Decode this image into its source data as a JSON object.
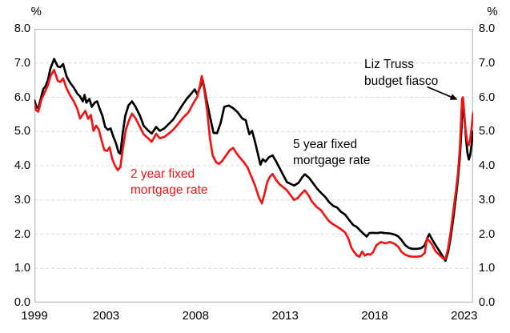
{
  "page": {
    "background": "#ffffff"
  },
  "chart_data": {
    "type": "line",
    "title": "",
    "x_axis": {
      "min": 1999.0,
      "max": 2023.5,
      "tick_years": [
        1999,
        2003,
        2008,
        2013,
        2018,
        2023
      ]
    },
    "y_axis": {
      "min": 0,
      "max": 8,
      "tick_step": 1,
      "unit": "%",
      "label_format": "one-decimal",
      "gridlines": "dashed-horizontal",
      "shown_on": "both-sides"
    },
    "grid_color": "#d9d9d9",
    "frame_color": "#bfbfbf",
    "series": [
      {
        "id": "five_year",
        "name": "5 year fixed mortgage rate",
        "label_lines": [
          "5 year fixed",
          "mortgage rate"
        ],
        "color": "#000000",
        "points": [
          [
            1999.0,
            5.91
          ],
          [
            1999.1,
            5.73
          ],
          [
            1999.22,
            5.68
          ],
          [
            1999.4,
            6.05
          ],
          [
            1999.5,
            6.25
          ],
          [
            1999.6,
            6.3
          ],
          [
            1999.75,
            6.5
          ],
          [
            1999.9,
            6.85
          ],
          [
            2000.1,
            7.12
          ],
          [
            2000.3,
            6.9
          ],
          [
            2000.45,
            6.88
          ],
          [
            2000.6,
            6.97
          ],
          [
            2000.8,
            6.6
          ],
          [
            2001.0,
            6.42
          ],
          [
            2001.2,
            6.28
          ],
          [
            2001.4,
            6.1
          ],
          [
            2001.54,
            6.03
          ],
          [
            2001.7,
            5.88
          ],
          [
            2001.8,
            6.07
          ],
          [
            2001.9,
            5.84
          ],
          [
            2002.07,
            5.95
          ],
          [
            2002.2,
            5.72
          ],
          [
            2002.36,
            5.84
          ],
          [
            2002.5,
            5.88
          ],
          [
            2002.66,
            5.64
          ],
          [
            2002.8,
            5.45
          ],
          [
            2002.95,
            5.13
          ],
          [
            2003.1,
            5.05
          ],
          [
            2003.25,
            5.09
          ],
          [
            2003.4,
            4.86
          ],
          [
            2003.55,
            4.66
          ],
          [
            2003.7,
            4.39
          ],
          [
            2003.8,
            4.35
          ],
          [
            2003.92,
            4.9
          ],
          [
            2004.07,
            5.45
          ],
          [
            2004.25,
            5.76
          ],
          [
            2004.45,
            5.88
          ],
          [
            2004.65,
            5.72
          ],
          [
            2004.9,
            5.45
          ],
          [
            2005.1,
            5.17
          ],
          [
            2005.35,
            5.03
          ],
          [
            2005.55,
            4.94
          ],
          [
            2005.8,
            5.13
          ],
          [
            2006.0,
            5.02
          ],
          [
            2006.25,
            5.09
          ],
          [
            2006.5,
            5.22
          ],
          [
            2006.75,
            5.35
          ],
          [
            2007.0,
            5.55
          ],
          [
            2007.25,
            5.76
          ],
          [
            2007.5,
            5.95
          ],
          [
            2007.75,
            6.1
          ],
          [
            2007.95,
            6.23
          ],
          [
            2008.1,
            6.08
          ],
          [
            2008.25,
            6.3
          ],
          [
            2008.4,
            6.5
          ],
          [
            2008.6,
            5.95
          ],
          [
            2008.8,
            5.44
          ],
          [
            2009.0,
            4.96
          ],
          [
            2009.2,
            4.95
          ],
          [
            2009.4,
            5.25
          ],
          [
            2009.6,
            5.72
          ],
          [
            2009.85,
            5.76
          ],
          [
            2010.1,
            5.68
          ],
          [
            2010.35,
            5.56
          ],
          [
            2010.6,
            5.38
          ],
          [
            2010.8,
            5.33
          ],
          [
            2011.0,
            4.92
          ],
          [
            2011.15,
            5.02
          ],
          [
            2011.3,
            4.74
          ],
          [
            2011.5,
            4.3
          ],
          [
            2011.62,
            4.03
          ],
          [
            2011.75,
            4.19
          ],
          [
            2011.9,
            4.12
          ],
          [
            2012.1,
            4.25
          ],
          [
            2012.3,
            4.3
          ],
          [
            2012.5,
            4.12
          ],
          [
            2012.7,
            3.92
          ],
          [
            2012.9,
            3.72
          ],
          [
            2013.1,
            3.52
          ],
          [
            2013.3,
            3.47
          ],
          [
            2013.5,
            3.42
          ],
          [
            2013.75,
            3.5
          ],
          [
            2013.95,
            3.66
          ],
          [
            2014.1,
            3.75
          ],
          [
            2014.35,
            3.64
          ],
          [
            2014.6,
            3.46
          ],
          [
            2014.8,
            3.32
          ],
          [
            2015.0,
            3.21
          ],
          [
            2015.25,
            3.08
          ],
          [
            2015.45,
            2.94
          ],
          [
            2015.7,
            2.82
          ],
          [
            2015.9,
            2.78
          ],
          [
            2016.1,
            2.66
          ],
          [
            2016.35,
            2.57
          ],
          [
            2016.55,
            2.43
          ],
          [
            2016.8,
            2.27
          ],
          [
            2017.0,
            2.21
          ],
          [
            2017.2,
            2.1
          ],
          [
            2017.4,
            2.0
          ],
          [
            2017.55,
            1.93
          ],
          [
            2017.7,
            2.03
          ],
          [
            2017.9,
            2.04
          ],
          [
            2018.1,
            2.03
          ],
          [
            2018.35,
            2.05
          ],
          [
            2018.6,
            2.03
          ],
          [
            2018.85,
            2.02
          ],
          [
            2019.1,
            1.99
          ],
          [
            2019.3,
            1.94
          ],
          [
            2019.5,
            1.83
          ],
          [
            2019.7,
            1.68
          ],
          [
            2019.9,
            1.6
          ],
          [
            2020.1,
            1.57
          ],
          [
            2020.35,
            1.57
          ],
          [
            2020.6,
            1.59
          ],
          [
            2020.8,
            1.68
          ],
          [
            2020.95,
            1.9
          ],
          [
            2021.05,
            2.0
          ],
          [
            2021.2,
            1.85
          ],
          [
            2021.4,
            1.68
          ],
          [
            2021.6,
            1.52
          ],
          [
            2021.8,
            1.35
          ],
          [
            2021.95,
            1.22
          ],
          [
            2022.1,
            1.48
          ],
          [
            2022.25,
            1.92
          ],
          [
            2022.4,
            2.5
          ],
          [
            2022.55,
            3.15
          ],
          [
            2022.65,
            3.62
          ],
          [
            2022.75,
            4.2
          ],
          [
            2022.83,
            4.9
          ],
          [
            2022.9,
            5.6
          ],
          [
            2022.95,
            5.82
          ],
          [
            2023.02,
            5.35
          ],
          [
            2023.1,
            4.78
          ],
          [
            2023.18,
            4.38
          ],
          [
            2023.26,
            4.18
          ],
          [
            2023.34,
            4.32
          ],
          [
            2023.42,
            4.65
          ],
          [
            2023.5,
            5.0
          ]
        ]
      },
      {
        "id": "two_year",
        "name": "2 year fixed mortgage rate",
        "label_lines": [
          "2 year fixed",
          "mortgage rate"
        ],
        "color": "#f01515",
        "points": [
          [
            1999.0,
            5.8
          ],
          [
            1999.1,
            5.62
          ],
          [
            1999.22,
            5.58
          ],
          [
            1999.4,
            5.95
          ],
          [
            1999.55,
            6.12
          ],
          [
            1999.75,
            6.35
          ],
          [
            1999.9,
            6.62
          ],
          [
            2000.1,
            6.8
          ],
          [
            2000.3,
            6.48
          ],
          [
            2000.45,
            6.45
          ],
          [
            2000.6,
            6.55
          ],
          [
            2000.8,
            6.25
          ],
          [
            2001.0,
            6.05
          ],
          [
            2001.2,
            5.88
          ],
          [
            2001.4,
            5.65
          ],
          [
            2001.55,
            5.38
          ],
          [
            2001.7,
            5.5
          ],
          [
            2001.85,
            5.6
          ],
          [
            2002.0,
            5.37
          ],
          [
            2002.15,
            5.48
          ],
          [
            2002.3,
            5.02
          ],
          [
            2002.45,
            5.17
          ],
          [
            2002.6,
            5.05
          ],
          [
            2002.75,
            4.74
          ],
          [
            2002.9,
            4.46
          ],
          [
            2003.05,
            4.43
          ],
          [
            2003.2,
            4.54
          ],
          [
            2003.35,
            4.19
          ],
          [
            2003.5,
            4.0
          ],
          [
            2003.65,
            3.87
          ],
          [
            2003.8,
            3.96
          ],
          [
            2003.92,
            4.43
          ],
          [
            2004.1,
            5.05
          ],
          [
            2004.3,
            5.35
          ],
          [
            2004.45,
            5.52
          ],
          [
            2004.65,
            5.38
          ],
          [
            2004.9,
            5.12
          ],
          [
            2005.1,
            4.92
          ],
          [
            2005.35,
            4.8
          ],
          [
            2005.55,
            4.7
          ],
          [
            2005.8,
            4.93
          ],
          [
            2006.0,
            4.8
          ],
          [
            2006.25,
            4.84
          ],
          [
            2006.5,
            4.94
          ],
          [
            2006.75,
            5.05
          ],
          [
            2007.0,
            5.2
          ],
          [
            2007.3,
            5.4
          ],
          [
            2007.6,
            5.56
          ],
          [
            2007.9,
            5.85
          ],
          [
            2008.1,
            6.02
          ],
          [
            2008.25,
            6.35
          ],
          [
            2008.35,
            6.62
          ],
          [
            2008.5,
            6.15
          ],
          [
            2008.65,
            5.6
          ],
          [
            2008.8,
            4.8
          ],
          [
            2008.95,
            4.3
          ],
          [
            2009.15,
            4.1
          ],
          [
            2009.3,
            4.05
          ],
          [
            2009.5,
            4.15
          ],
          [
            2009.7,
            4.3
          ],
          [
            2009.9,
            4.45
          ],
          [
            2010.1,
            4.52
          ],
          [
            2010.3,
            4.35
          ],
          [
            2010.5,
            4.22
          ],
          [
            2010.7,
            4.1
          ],
          [
            2010.9,
            3.95
          ],
          [
            2011.05,
            3.76
          ],
          [
            2011.3,
            3.45
          ],
          [
            2011.55,
            3.05
          ],
          [
            2011.7,
            2.9
          ],
          [
            2011.85,
            3.18
          ],
          [
            2012.0,
            3.52
          ],
          [
            2012.15,
            3.68
          ],
          [
            2012.3,
            3.76
          ],
          [
            2012.5,
            3.58
          ],
          [
            2012.7,
            3.45
          ],
          [
            2012.9,
            3.37
          ],
          [
            2013.1,
            3.28
          ],
          [
            2013.3,
            3.14
          ],
          [
            2013.5,
            3.0
          ],
          [
            2013.7,
            3.05
          ],
          [
            2013.9,
            3.18
          ],
          [
            2014.1,
            3.28
          ],
          [
            2014.3,
            3.14
          ],
          [
            2014.5,
            2.95
          ],
          [
            2014.75,
            2.8
          ],
          [
            2015.0,
            2.7
          ],
          [
            2015.2,
            2.55
          ],
          [
            2015.45,
            2.38
          ],
          [
            2015.7,
            2.28
          ],
          [
            2015.9,
            2.22
          ],
          [
            2016.1,
            2.15
          ],
          [
            2016.35,
            2.05
          ],
          [
            2016.55,
            1.85
          ],
          [
            2016.7,
            1.6
          ],
          [
            2016.85,
            1.48
          ],
          [
            2017.0,
            1.38
          ],
          [
            2017.15,
            1.34
          ],
          [
            2017.3,
            1.49
          ],
          [
            2017.45,
            1.37
          ],
          [
            2017.6,
            1.42
          ],
          [
            2017.75,
            1.4
          ],
          [
            2017.9,
            1.46
          ],
          [
            2018.1,
            1.68
          ],
          [
            2018.35,
            1.77
          ],
          [
            2018.6,
            1.73
          ],
          [
            2018.85,
            1.77
          ],
          [
            2019.1,
            1.72
          ],
          [
            2019.3,
            1.64
          ],
          [
            2019.5,
            1.48
          ],
          [
            2019.7,
            1.4
          ],
          [
            2019.9,
            1.36
          ],
          [
            2020.1,
            1.34
          ],
          [
            2020.35,
            1.34
          ],
          [
            2020.6,
            1.36
          ],
          [
            2020.8,
            1.45
          ],
          [
            2020.92,
            1.88
          ],
          [
            2021.05,
            1.8
          ],
          [
            2021.2,
            1.7
          ],
          [
            2021.4,
            1.5
          ],
          [
            2021.6,
            1.4
          ],
          [
            2021.8,
            1.3
          ],
          [
            2021.95,
            1.28
          ],
          [
            2022.1,
            1.58
          ],
          [
            2022.25,
            2.08
          ],
          [
            2022.4,
            2.72
          ],
          [
            2022.55,
            3.32
          ],
          [
            2022.65,
            3.78
          ],
          [
            2022.75,
            4.45
          ],
          [
            2022.82,
            5.25
          ],
          [
            2022.88,
            5.95
          ],
          [
            2022.93,
            6.0
          ],
          [
            2023.0,
            5.52
          ],
          [
            2023.08,
            5.02
          ],
          [
            2023.17,
            4.7
          ],
          [
            2023.25,
            4.6
          ],
          [
            2023.33,
            4.75
          ],
          [
            2023.42,
            5.15
          ],
          [
            2023.5,
            5.55
          ]
        ]
      }
    ],
    "annotation": {
      "lines": [
        "Liz Truss",
        "budget fiasco"
      ],
      "points_to": {
        "series": "2 year fixed mortgage rate",
        "year": 2022.9,
        "value": 6.0
      }
    }
  }
}
